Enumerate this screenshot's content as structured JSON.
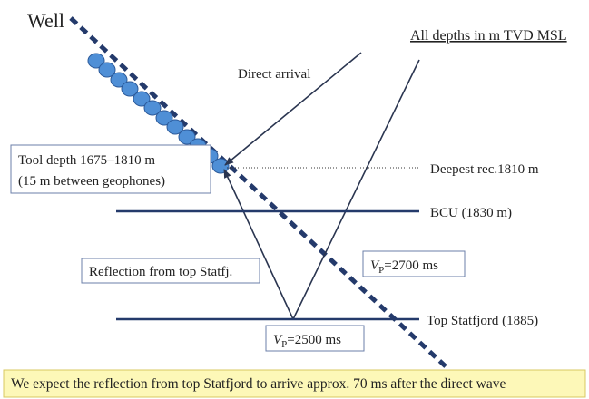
{
  "well_label": "Well",
  "depth_note": "All depths in m TVD MSL",
  "direct_arrival": "Direct arrival",
  "tool_depth": {
    "line1": "Tool depth 1675–1810 m",
    "line2": "(15 m between geophones)"
  },
  "deepest_receiver": "Deepest rec.1810 m",
  "bcu": "BCU (1830 m)",
  "reflection": "Reflection from top Statfj.",
  "vp_upper": {
    "symbol": "V",
    "subscript": "P",
    "text": "=2700 ms"
  },
  "top_statfjord": "Top Statfjord (1885)",
  "vp_lower": {
    "symbol": "V",
    "subscript": "P",
    "text": "=2500 ms"
  },
  "footer": "We expect the reflection from top Statfjord to arrive approx. 70 ms after the direct wave"
}
